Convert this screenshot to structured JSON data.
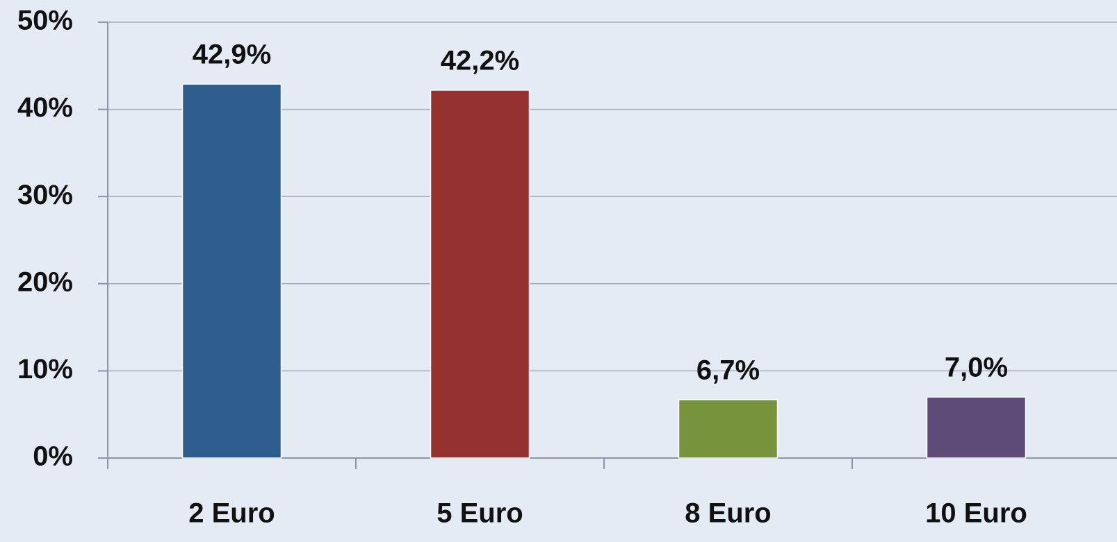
{
  "chart_data": {
    "type": "bar",
    "categories": [
      "2 Euro",
      "5 Euro",
      "8 Euro",
      "10 Euro"
    ],
    "values": [
      42.9,
      42.2,
      6.7,
      7.0
    ],
    "value_labels": [
      "42,9%",
      "42,2%",
      "6,7%",
      "7,0%"
    ],
    "colors": [
      "#2e5e8e",
      "#953230",
      "#77933c",
      "#5f4b78"
    ],
    "ylim": [
      0,
      50
    ],
    "yticks": [
      {
        "value": 0,
        "label": "0%"
      },
      {
        "value": 10,
        "label": "10%"
      },
      {
        "value": 20,
        "label": "20%"
      },
      {
        "value": 30,
        "label": "30%"
      },
      {
        "value": 40,
        "label": "40%"
      },
      {
        "value": 50,
        "label": "50%"
      }
    ],
    "grid": true
  }
}
